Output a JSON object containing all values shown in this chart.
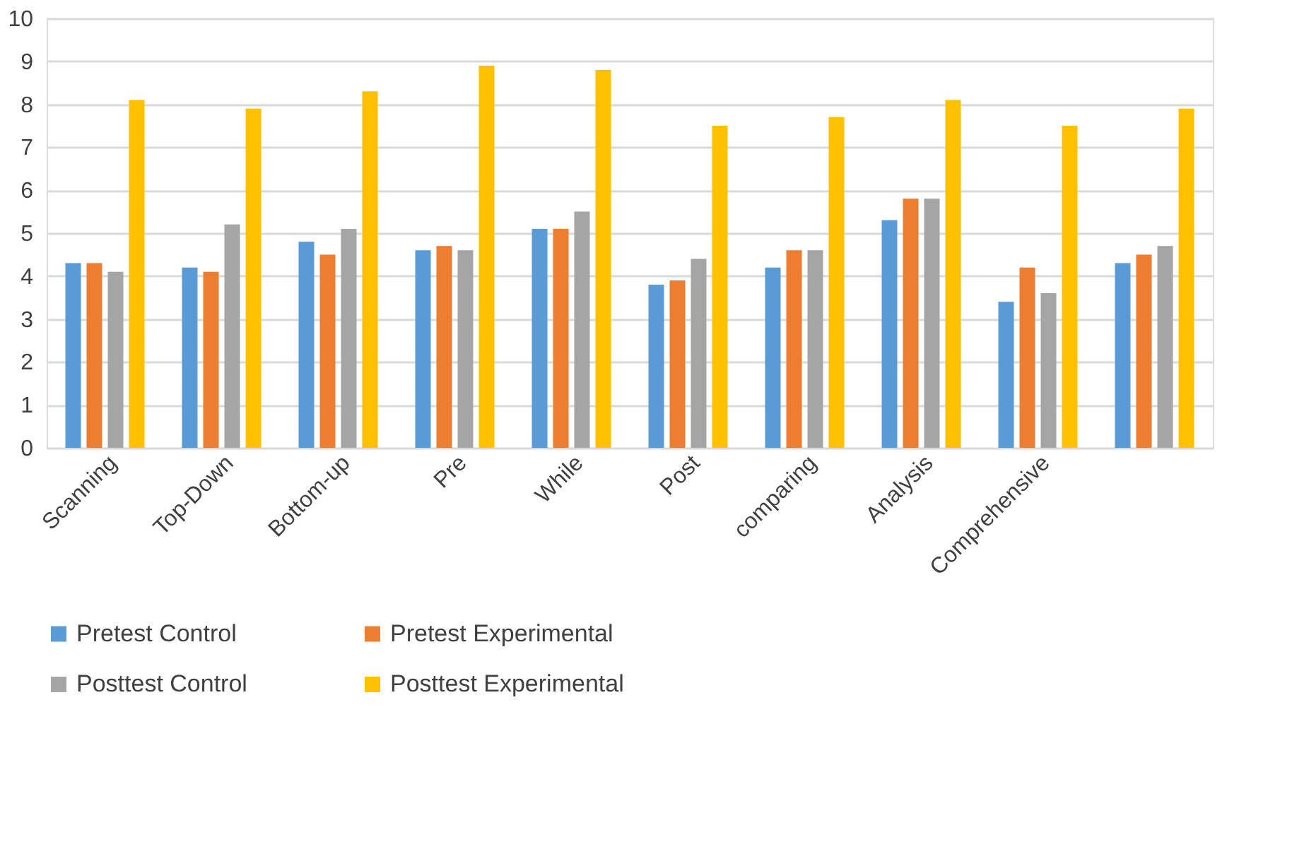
{
  "chart_data": {
    "type": "bar",
    "categories": [
      "Scanning",
      "Top-Down",
      "Bottom-up",
      "Pre",
      "While",
      "Post",
      "comparing",
      "Analysis",
      "Comprehensive",
      null
    ],
    "series": [
      {
        "name": "Pretest Control",
        "color": "#5b9bd5",
        "values": [
          4.3,
          4.2,
          4.8,
          4.6,
          5.1,
          3.8,
          4.2,
          5.3,
          3.4,
          4.3
        ]
      },
      {
        "name": "Pretest Experimental",
        "color": "#ed7d31",
        "values": [
          4.3,
          4.1,
          4.5,
          4.7,
          5.1,
          3.9,
          4.6,
          5.8,
          4.2,
          4.5
        ]
      },
      {
        "name": "Posttest Control",
        "color": "#a5a5a5",
        "values": [
          4.1,
          5.2,
          5.1,
          4.6,
          5.5,
          4.4,
          4.6,
          5.8,
          3.6,
          4.7
        ]
      },
      {
        "name": "Posttest Experimental",
        "color": "#ffc000",
        "values": [
          8.1,
          7.9,
          8.3,
          8.9,
          8.8,
          7.5,
          7.7,
          8.1,
          7.5,
          7.9
        ]
      }
    ],
    "ylim": [
      0,
      10
    ],
    "yticks": [
      0,
      1,
      2,
      3,
      4,
      5,
      6,
      7,
      8,
      9,
      10
    ],
    "grid": "y",
    "legend": "bottom"
  }
}
